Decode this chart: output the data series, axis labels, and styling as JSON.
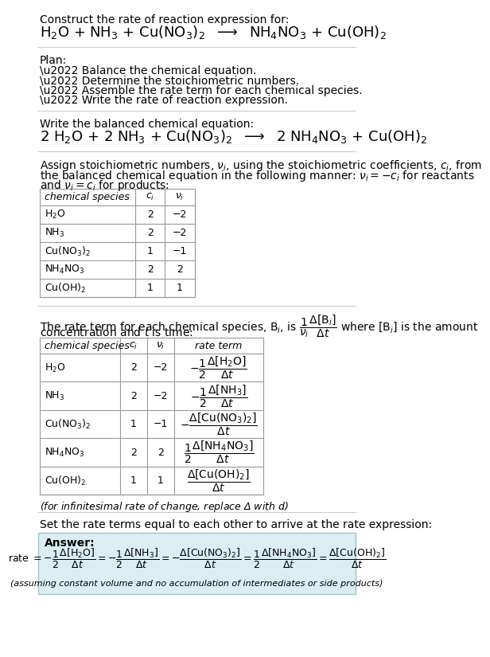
{
  "title_line1": "Construct the rate of reaction expression for:",
  "title_line2": "H$_2$O + NH$_3$ + Cu(NO$_3$)$_2$  $\\longrightarrow$  NH$_4$NO$_3$ + Cu(OH)$_2$",
  "plan_header": "Plan:",
  "plan_items": [
    "\\u2022 Balance the chemical equation.",
    "\\u2022 Determine the stoichiometric numbers.",
    "\\u2022 Assemble the rate term for each chemical species.",
    "\\u2022 Write the rate of reaction expression."
  ],
  "balanced_header": "Write the balanced chemical equation:",
  "balanced_eq": "2 H$_2$O + 2 NH$_3$ + Cu(NO$_3$)$_2$  $\\longrightarrow$  2 NH$_4$NO$_3$ + Cu(OH)$_2$",
  "stoich_intro_1": "Assign stoichiometric numbers, $\\nu_i$, using the stoichiometric coefficients, $c_i$, from",
  "stoich_intro_2": "the balanced chemical equation in the following manner: $\\nu_i = -c_i$ for reactants",
  "stoich_intro_3": "and $\\nu_i = c_i$ for products:",
  "table1_headers": [
    "chemical species",
    "$c_i$",
    "$\\nu_i$"
  ],
  "table1_rows": [
    [
      "H$_2$O",
      "2",
      "−2"
    ],
    [
      "NH$_3$",
      "2",
      "−2"
    ],
    [
      "Cu(NO$_3$)$_2$",
      "1",
      "−1"
    ],
    [
      "NH$_4$NO$_3$",
      "2",
      "2"
    ],
    [
      "Cu(OH)$_2$",
      "1",
      "1"
    ]
  ],
  "rate_intro_1": "The rate term for each chemical species, B$_i$, is $\\dfrac{1}{\\nu_i}\\dfrac{\\Delta[\\mathrm{B}_i]}{\\Delta t}$ where [B$_i$] is the amount",
  "rate_intro_2": "concentration and $t$ is time:",
  "table2_headers": [
    "chemical species",
    "$c_i$",
    "$\\nu_i$",
    "rate term"
  ],
  "table2_rows": [
    [
      "H$_2$O",
      "2",
      "−2",
      "$-\\dfrac{1}{2}\\dfrac{\\Delta[\\mathrm{H_2O}]}{\\Delta t}$"
    ],
    [
      "NH$_3$",
      "2",
      "−2",
      "$-\\dfrac{1}{2}\\dfrac{\\Delta[\\mathrm{NH_3}]}{\\Delta t}$"
    ],
    [
      "Cu(NO$_3$)$_2$",
      "1",
      "−1",
      "$-\\dfrac{\\Delta[\\mathrm{Cu(NO_3)_2}]}{\\Delta t}$"
    ],
    [
      "NH$_4$NO$_3$",
      "2",
      "2",
      "$\\dfrac{1}{2}\\dfrac{\\Delta[\\mathrm{NH_4NO_3}]}{\\Delta t}$"
    ],
    [
      "Cu(OH)$_2$",
      "1",
      "1",
      "$\\dfrac{\\Delta[\\mathrm{Cu(OH)_2}]}{\\Delta t}$"
    ]
  ],
  "infinitesimal_note": "(for infinitesimal rate of change, replace Δ with $d$)",
  "set_equal_text": "Set the rate terms equal to each other to arrive at the rate expression:",
  "answer_label": "Answer:",
  "answer_box_color": "#daeef3",
  "answer_box_border": "#9fc4cc",
  "answer_eq_parts": [
    "rate $= -\\dfrac{1}{2}\\dfrac{\\Delta[\\mathrm{H_2O}]}{\\Delta t} = -\\dfrac{1}{2}\\dfrac{\\Delta[\\mathrm{NH_3}]}{\\Delta t} = -\\dfrac{\\Delta[\\mathrm{Cu(NO_3)_2}]}{\\Delta t} = \\dfrac{1}{2}\\dfrac{\\Delta[\\mathrm{NH_4NO_3}]}{\\Delta t} = \\dfrac{\\Delta[\\mathrm{Cu(OH)_2}]}{\\Delta t}$"
  ],
  "answer_note": "(assuming constant volume and no accumulation of intermediates or side products)",
  "bg_color": "#ffffff",
  "text_color": "#000000",
  "table_border_color": "#999999",
  "separator_color": "#cccccc",
  "font_size": 10,
  "small_font_size": 9,
  "eq_font_size": 13
}
